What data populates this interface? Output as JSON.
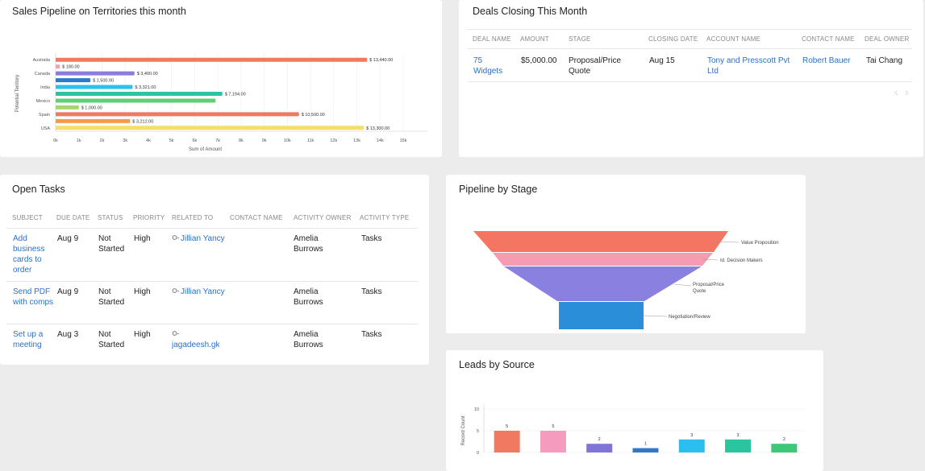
{
  "sales_pipeline": {
    "title": "Sales Pipeline on Territories this month",
    "chart_data": {
      "type": "bar",
      "orientation": "horizontal",
      "categories": [
        "Australia",
        "",
        "Canada",
        "",
        "India",
        "",
        "Mexico",
        "",
        "Spain",
        "",
        "USA"
      ],
      "values": [
        13440,
        180,
        3400,
        1500,
        3321,
        7194,
        6900,
        1000,
        10500,
        3212,
        13300
      ],
      "value_labels": [
        "$ 13,440.00",
        "$ 180.00",
        "$ 3,400.00",
        "$ 1,500.00",
        "$ 3,321.00",
        "$ 7,194.00",
        "",
        "$ 1,000.00",
        "$ 10,500.00",
        "$ 3,212.00",
        "$ 13,300.00"
      ],
      "colors": [
        "#f07a61",
        "#f3a0b5",
        "#8c7ddd",
        "#2e79c9",
        "#2bc2eb",
        "#2ac4a4",
        "#5fcf7a",
        "#a5d66a",
        "#f07a61",
        "#f39a4e",
        "#f5de6a"
      ],
      "xlabel": "Sum of Amount",
      "ylabel": "Potential Territory",
      "xlim": [
        0,
        15000
      ],
      "xticks": [
        "0k",
        "1k",
        "2k",
        "3k",
        "4k",
        "5k",
        "6k",
        "7k",
        "8k",
        "9k",
        "10k",
        "11k",
        "12k",
        "13k",
        "14k",
        "15k"
      ]
    }
  },
  "deals": {
    "title": "Deals Closing This Month",
    "headers": [
      "DEAL NAME",
      "AMOUNT",
      "STAGE",
      "CLOSING DATE",
      "ACCOUNT NAME",
      "CONTACT NAME",
      "DEAL OWNER"
    ],
    "row": {
      "deal_name": "75 Widgets",
      "amount": "$5,000.00",
      "stage": "Proposal/Price Quote",
      "closing_date": "Aug 15",
      "account_name": "Tony and Presscott Pvt Ltd",
      "contact_name": "Robert Bauer",
      "deal_owner": "Tai Chang"
    },
    "pager_prev": "‹",
    "pager_next": "›"
  },
  "tasks": {
    "title": "Open Tasks",
    "headers": [
      "SUBJECT",
      "DUE DATE",
      "STATUS",
      "PRIORITY",
      "RELATED TO",
      "CONTACT NAME",
      "ACTIVITY OWNER",
      "ACTIVITY TYPE"
    ],
    "rows": [
      {
        "subject": "Add business cards to order",
        "due": "Aug 9",
        "status": "Not Started",
        "priority": "High",
        "related": "Jillian Yancy",
        "contact": "",
        "owner": "Amelia Burrows",
        "type": "Tasks"
      },
      {
        "subject": "Send PDF with comps",
        "due": "Aug 9",
        "status": "Not Started",
        "priority": "High",
        "related": "Jillian Yancy",
        "contact": "",
        "owner": "Amelia Burrows",
        "type": "Tasks"
      },
      {
        "subject": "Set up a meeting",
        "due": "Aug 3",
        "status": "Not Started",
        "priority": "High",
        "related": "jagadeesh.gk",
        "contact": "",
        "owner": "Amelia Burrows",
        "type": "Tasks"
      }
    ]
  },
  "pipeline_stage": {
    "title": "Pipeline by Stage",
    "stages": [
      "Value Proposition",
      "Id. Decision Makers",
      "Proposal/Price Quote",
      "Negotiation/Review"
    ],
    "colors": [
      "#f47561",
      "#f59bb4",
      "#8a80e0",
      "#2a8fd8"
    ]
  },
  "leads_source": {
    "title": "Leads by Source",
    "chart_data": {
      "type": "bar",
      "values": [
        5,
        5,
        2,
        1,
        3,
        3,
        2
      ],
      "colors": [
        "#f07a61",
        "#f59bbd",
        "#7f75d9",
        "#2e79c9",
        "#2bbfee",
        "#2ac49e",
        "#3dc879"
      ],
      "ylabel": "Record Count",
      "ylim": [
        0,
        10
      ],
      "yticks": [
        "0",
        "5",
        "10"
      ]
    }
  }
}
